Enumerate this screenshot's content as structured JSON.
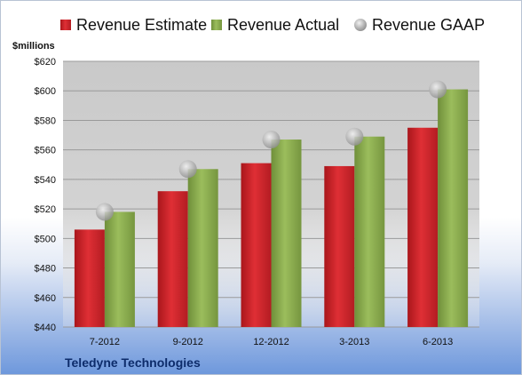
{
  "chart_data": {
    "type": "bar",
    "unit_label": "$millions",
    "company": "Teledyne Technologies",
    "categories": [
      "7-2012",
      "9-2012",
      "12-2012",
      "3-2013",
      "6-2013"
    ],
    "series": [
      {
        "name": "Revenue Estimate",
        "kind": "bar",
        "color": "#d0262c",
        "values": [
          506,
          532,
          551,
          549,
          575
        ]
      },
      {
        "name": "Revenue Actual",
        "kind": "bar",
        "color": "#8aad4e",
        "values": [
          518,
          547,
          567,
          569,
          601
        ]
      },
      {
        "name": "Revenue GAAP",
        "kind": "marker",
        "color": "#b5b8bd",
        "values": [
          518,
          547,
          567,
          569,
          601
        ]
      }
    ],
    "ylim": [
      440,
      620
    ],
    "yticks": [
      440,
      460,
      480,
      500,
      520,
      540,
      560,
      580,
      600,
      620
    ],
    "ytick_labels": [
      "$440",
      "$460",
      "$480",
      "$500",
      "$520",
      "$540",
      "$560",
      "$580",
      "$600",
      "$620"
    ],
    "grid": true,
    "legend_position": "top"
  }
}
